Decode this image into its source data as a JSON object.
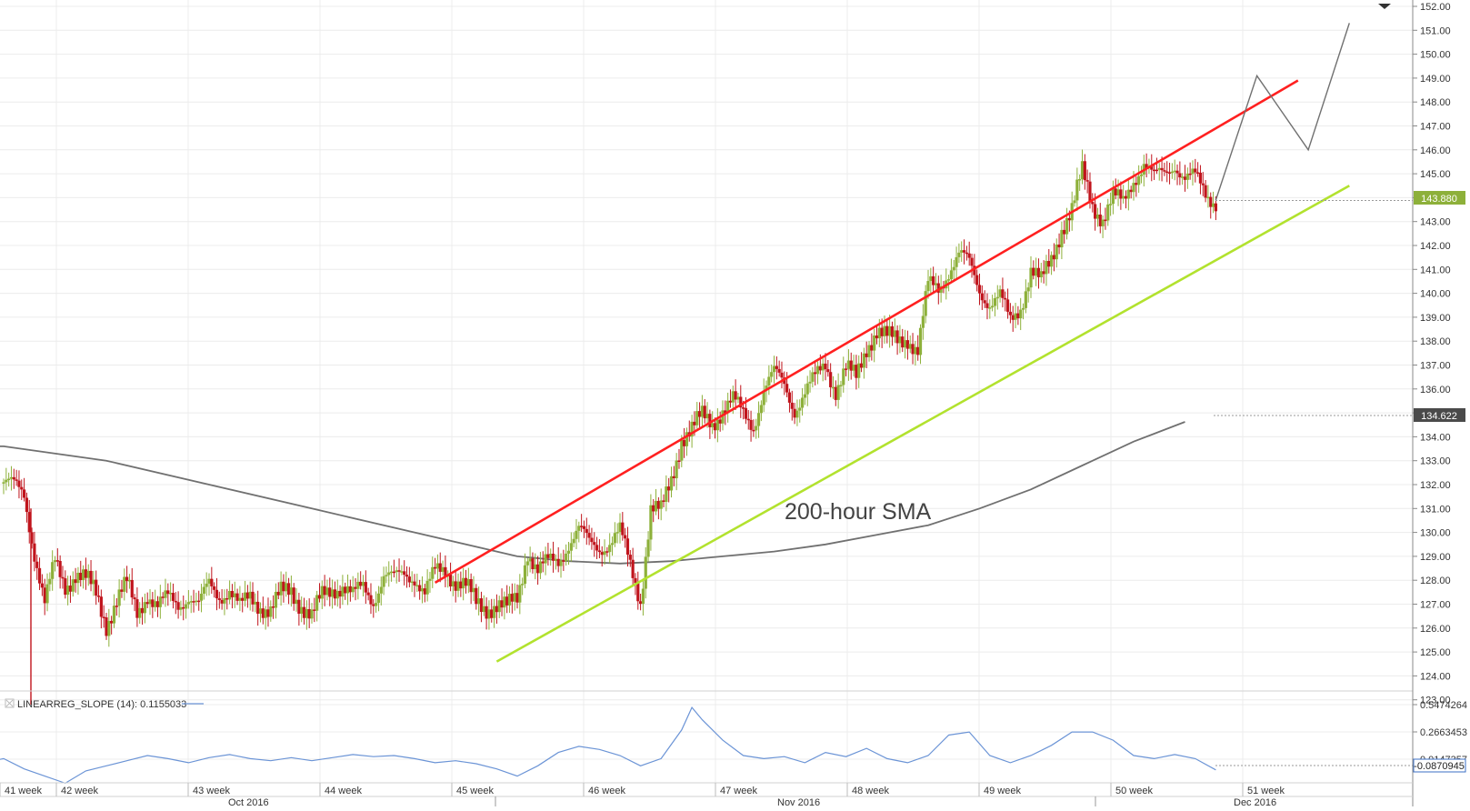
{
  "colors": {
    "bull_candle": "#8db03a",
    "bear_candle": "#c0141c",
    "upper_channel": "#ff2020",
    "lower_channel": "#b2e22e",
    "sma_line": "#707070",
    "forecast_line": "#707070",
    "indicator_line": "#6b94d6",
    "grid": "#ececec",
    "last_price_badge": "#8db03a",
    "sma_badge": "#4a4a4a",
    "indicator_badge_border": "#3b6fc4"
  },
  "header": {
    "collapse_icon": "triangle-down-icon"
  },
  "chart_data": [
    {
      "type": "candlestick",
      "title": "",
      "annotation": "200-hour SMA",
      "ylim": [
        123,
        152
      ],
      "yticks": [
        "123.00",
        "124.00",
        "125.00",
        "126.00",
        "127.00",
        "128.00",
        "129.00",
        "130.00",
        "131.00",
        "132.00",
        "133.00",
        "134.00",
        "135.00",
        "136.00",
        "137.00",
        "138.00",
        "139.00",
        "140.00",
        "141.00",
        "142.00",
        "143.00",
        "144.00",
        "145.00",
        "146.00",
        "147.00",
        "148.00",
        "149.00",
        "150.00",
        "151.00",
        "152.00"
      ],
      "last_price": "143.880",
      "sma_value": "134.622",
      "grid": true,
      "price_path": [
        [
          0,
          132.1
        ],
        [
          1,
          131.9
        ],
        [
          2,
          131.6
        ],
        [
          3,
          129.2
        ],
        [
          4,
          127.0
        ],
        [
          5,
          128.7
        ],
        [
          6,
          127.8
        ],
        [
          7,
          128.3
        ],
        [
          8,
          128.0
        ],
        [
          9,
          127.4
        ],
        [
          10,
          126.2
        ],
        [
          11,
          127.2
        ],
        [
          12,
          127.8
        ],
        [
          13,
          126.6
        ],
        [
          14,
          127.5
        ],
        [
          15,
          126.9
        ],
        [
          16,
          127.2
        ],
        [
          17,
          127.0
        ],
        [
          18,
          127.4
        ],
        [
          19,
          126.9
        ],
        [
          20,
          127.8
        ],
        [
          21,
          127.4
        ],
        [
          22,
          127.6
        ],
        [
          23,
          126.8
        ],
        [
          24,
          127.3
        ],
        [
          25,
          127.0
        ],
        [
          26,
          126.7
        ],
        [
          27,
          127.4
        ],
        [
          28,
          127.6
        ],
        [
          29,
          127.0
        ],
        [
          30,
          126.4
        ],
        [
          31,
          127.3
        ],
        [
          32,
          127.7
        ],
        [
          33,
          127.8
        ],
        [
          34,
          127.3
        ],
        [
          35,
          127.7
        ],
        [
          36,
          127.2
        ],
        [
          37,
          128.2
        ],
        [
          38,
          128.0
        ],
        [
          39,
          128.3
        ],
        [
          40,
          128.2
        ],
        [
          41,
          127.4
        ],
        [
          42,
          128.3
        ],
        [
          43,
          128.5
        ],
        [
          44,
          128.0
        ],
        [
          45,
          127.7
        ],
        [
          46,
          127.0
        ],
        [
          47,
          126.9
        ],
        [
          48,
          127.0
        ],
        [
          49,
          126.8
        ],
        [
          50,
          127.2
        ],
        [
          51,
          129.3
        ],
        [
          52,
          128.4
        ],
        [
          53,
          128.7
        ],
        [
          54,
          128.8
        ],
        [
          55,
          129.6
        ],
        [
          56,
          130.1
        ],
        [
          57,
          129.5
        ],
        [
          58,
          129.4
        ],
        [
          59,
          129.6
        ],
        [
          60,
          130.0
        ],
        [
          61,
          128.6
        ],
        [
          62,
          127.2
        ],
        [
          63,
          131.0
        ],
        [
          64,
          130.8
        ],
        [
          65,
          132.2
        ],
        [
          66,
          134.0
        ],
        [
          67,
          134.3
        ],
        [
          68,
          134.8
        ],
        [
          69,
          134.6
        ],
        [
          70,
          135.2
        ],
        [
          71,
          135.5
        ],
        [
          72,
          134.9
        ],
        [
          73,
          134.5
        ],
        [
          74,
          136.0
        ],
        [
          75,
          136.6
        ],
        [
          76,
          136.2
        ],
        [
          77,
          135.2
        ],
        [
          78,
          135.8
        ],
        [
          79,
          136.4
        ],
        [
          80,
          137.1
        ],
        [
          81,
          136.0
        ],
        [
          82,
          136.8
        ],
        [
          83,
          136.4
        ],
        [
          84,
          137.8
        ],
        [
          85,
          138.5
        ],
        [
          86,
          138.1
        ],
        [
          87,
          138.0
        ],
        [
          88,
          138.2
        ],
        [
          89,
          137.6
        ],
        [
          90,
          140.3
        ],
        [
          91,
          140.2
        ],
        [
          92,
          141.0
        ],
        [
          93,
          141.6
        ],
        [
          94,
          141.2
        ],
        [
          95,
          140.2
        ],
        [
          96,
          139.6
        ],
        [
          97,
          139.8
        ],
        [
          98,
          138.8
        ],
        [
          99,
          139.5
        ],
        [
          100,
          141.0
        ],
        [
          101,
          140.4
        ],
        [
          102,
          141.4
        ],
        [
          103,
          142.8
        ],
        [
          104,
          143.5
        ],
        [
          105,
          145.0
        ],
        [
          106,
          143.7
        ],
        [
          107,
          143.2
        ],
        [
          108,
          144.0
        ],
        [
          109,
          143.7
        ],
        [
          110,
          144.8
        ],
        [
          111,
          145.5
        ],
        [
          112,
          144.8
        ],
        [
          113,
          145.0
        ],
        [
          114,
          145.5
        ],
        [
          115,
          144.8
        ],
        [
          116,
          144.8
        ],
        [
          117,
          144.2
        ],
        [
          118,
          143.9
        ]
      ],
      "sma_path": [
        [
          -20,
          133.6
        ],
        [
          0,
          133.6
        ],
        [
          10,
          133.0
        ],
        [
          20,
          132.0
        ],
        [
          30,
          131.0
        ],
        [
          40,
          130.0
        ],
        [
          50,
          129.0
        ],
        [
          55,
          128.8
        ],
        [
          60,
          128.7
        ],
        [
          65,
          128.8
        ],
        [
          70,
          129.0
        ],
        [
          75,
          129.2
        ],
        [
          80,
          129.5
        ],
        [
          85,
          129.9
        ],
        [
          90,
          130.3
        ],
        [
          95,
          131.0
        ],
        [
          100,
          131.8
        ],
        [
          105,
          132.8
        ],
        [
          110,
          133.8
        ],
        [
          115,
          134.622
        ]
      ],
      "upper_channel": [
        [
          42,
          127.9
        ],
        [
          126,
          148.9
        ]
      ],
      "lower_channel": [
        [
          48,
          124.6
        ],
        [
          131,
          144.5
        ]
      ],
      "forecast": [
        [
          118,
          143.9
        ],
        [
          122,
          149.1
        ],
        [
          127,
          146.0
        ],
        [
          131,
          151.3
        ]
      ]
    },
    {
      "type": "line",
      "title": "",
      "indicator_label": "LINEARREG_SLOPE (14): 0.1155033",
      "yticks": [
        "0.5474264",
        "0.2663453",
        "0.0147357"
      ],
      "last_value": "-0.0870945",
      "series": [
        [
          -10,
          -0.06
        ],
        [
          -5,
          -0.08
        ],
        [
          0,
          0.02
        ],
        [
          2,
          -0.08
        ],
        [
          4,
          -0.15
        ],
        [
          6,
          -0.22
        ],
        [
          8,
          -0.1
        ],
        [
          10,
          -0.05
        ],
        [
          12,
          0.0
        ],
        [
          14,
          0.05
        ],
        [
          16,
          0.02
        ],
        [
          18,
          -0.02
        ],
        [
          20,
          0.03
        ],
        [
          22,
          0.06
        ],
        [
          24,
          0.02
        ],
        [
          26,
          0.0
        ],
        [
          28,
          0.03
        ],
        [
          30,
          0.0
        ],
        [
          32,
          0.03
        ],
        [
          34,
          0.06
        ],
        [
          36,
          0.04
        ],
        [
          38,
          0.05
        ],
        [
          40,
          0.02
        ],
        [
          42,
          -0.02
        ],
        [
          44,
          0.0
        ],
        [
          46,
          -0.03
        ],
        [
          48,
          -0.08
        ],
        [
          50,
          -0.15
        ],
        [
          52,
          -0.05
        ],
        [
          54,
          0.08
        ],
        [
          56,
          0.14
        ],
        [
          58,
          0.11
        ],
        [
          60,
          0.05
        ],
        [
          62,
          -0.05
        ],
        [
          64,
          0.02
        ],
        [
          66,
          0.3
        ],
        [
          67,
          0.52
        ],
        [
          68,
          0.4
        ],
        [
          70,
          0.2
        ],
        [
          72,
          0.05
        ],
        [
          74,
          0.02
        ],
        [
          76,
          0.04
        ],
        [
          78,
          -0.02
        ],
        [
          80,
          0.08
        ],
        [
          82,
          0.04
        ],
        [
          84,
          0.12
        ],
        [
          86,
          0.02
        ],
        [
          88,
          -0.02
        ],
        [
          90,
          0.05
        ],
        [
          92,
          0.25
        ],
        [
          94,
          0.28
        ],
        [
          96,
          0.05
        ],
        [
          98,
          -0.02
        ],
        [
          100,
          0.05
        ],
        [
          102,
          0.15
        ],
        [
          104,
          0.28
        ],
        [
          106,
          0.28
        ],
        [
          108,
          0.2
        ],
        [
          110,
          0.05
        ],
        [
          112,
          0.02
        ],
        [
          114,
          0.06
        ],
        [
          116,
          0.02
        ],
        [
          118,
          -0.09
        ]
      ]
    }
  ],
  "x_axis": {
    "week_labels": [
      "41 week",
      "42 week",
      "43 week",
      "44 week",
      "45 week",
      "46 week",
      "47 week",
      "48 week",
      "49 week",
      "50 week",
      "51 week"
    ],
    "month_labels": [
      "Oct 2016",
      "Nov 2016",
      "Dec 2016"
    ]
  }
}
